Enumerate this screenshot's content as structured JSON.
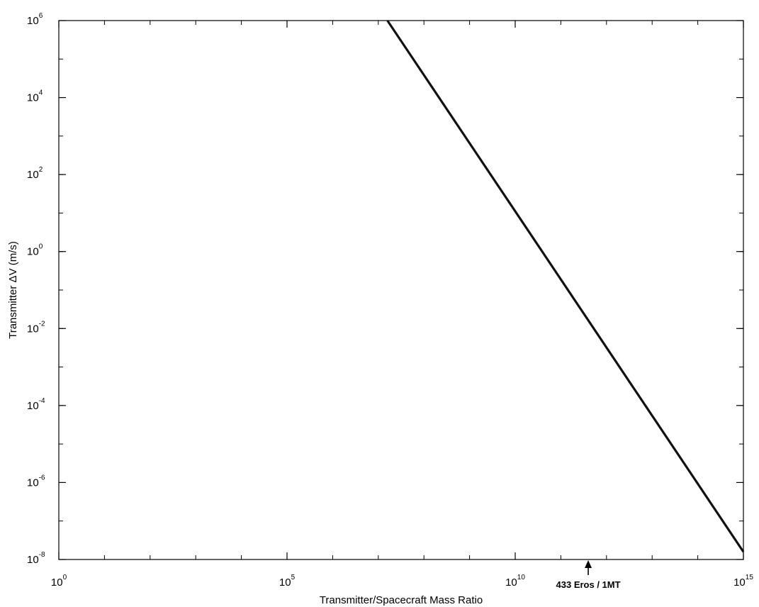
{
  "chart_data": {
    "type": "line",
    "x_scale": "log",
    "y_scale": "log",
    "xlim": [
      1,
      1000000000000000.0
    ],
    "ylim": [
      1e-08,
      1000000.0
    ],
    "xlabel": "Transmitter/Spacecraft Mass Ratio",
    "ylabel": "Transmitter ΔV (m/s)",
    "x_ticks": [
      {
        "base": "10",
        "exp": "0",
        "value": 1
      },
      {
        "base": "10",
        "exp": "5",
        "value": 100000
      },
      {
        "base": "10",
        "exp": "10",
        "value": 10000000000
      },
      {
        "base": "10",
        "exp": "15",
        "value": 1000000000000000
      }
    ],
    "y_ticks": [
      {
        "base": "10",
        "exp": "6",
        "value": 1000000
      },
      {
        "base": "10",
        "exp": "4",
        "value": 10000
      },
      {
        "base": "10",
        "exp": "2",
        "value": 100
      },
      {
        "base": "10",
        "exp": "0",
        "value": 1
      },
      {
        "base": "10",
        "exp": "-2",
        "value": 0.01
      },
      {
        "base": "10",
        "exp": "-4",
        "value": 0.0001
      },
      {
        "base": "10",
        "exp": "-6",
        "value": 1e-06
      },
      {
        "base": "10",
        "exp": "-8",
        "value": 1e-08
      }
    ],
    "grid": false,
    "series": [
      {
        "points": [
          {
            "x": 15848931.9,
            "y": 1000000
          },
          {
            "x": 1000000000000000,
            "y": 1.58e-08
          }
        ],
        "color": "#111111"
      }
    ],
    "annotations": [
      {
        "text": "433 Eros / 1MT",
        "x": 398107170553.5
      }
    ]
  }
}
